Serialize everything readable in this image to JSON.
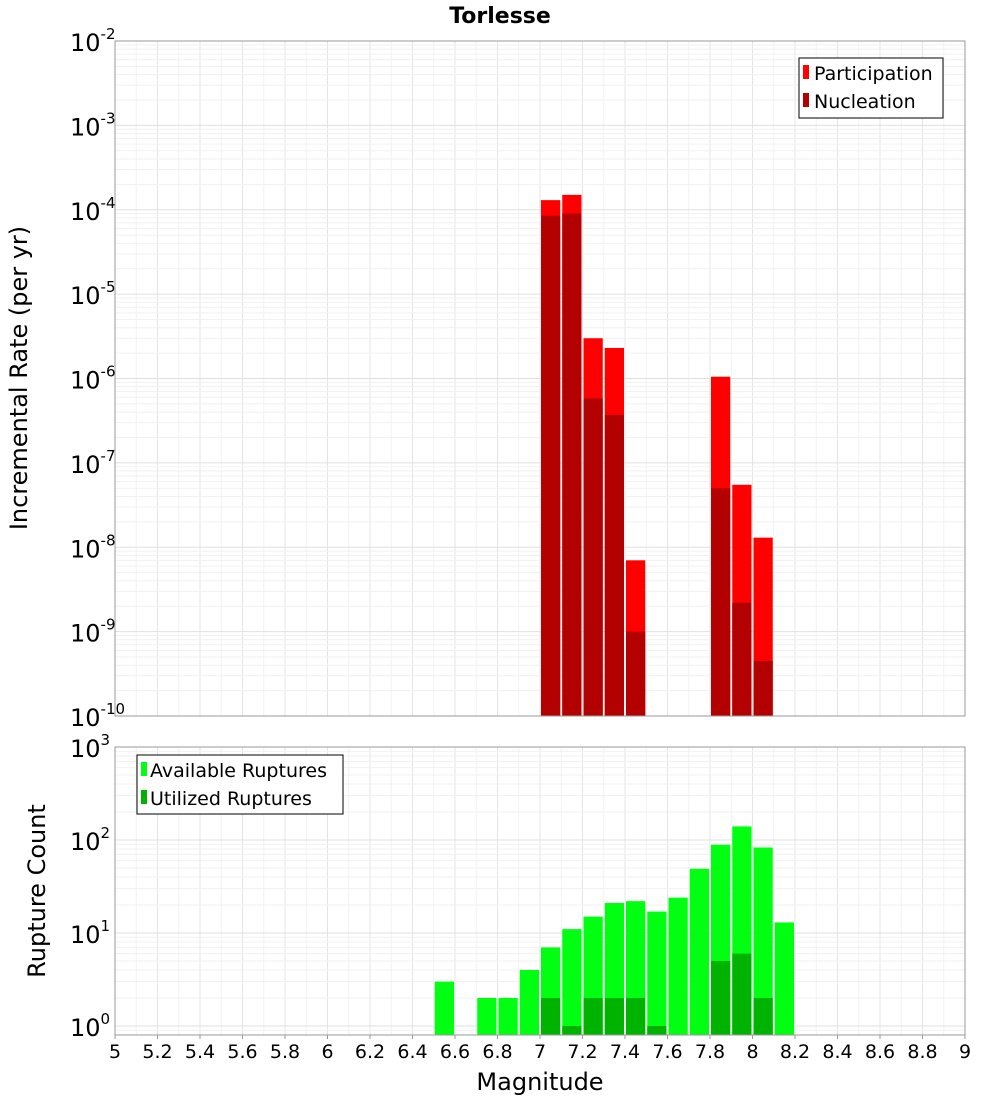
{
  "chart_data": [
    {
      "type": "bar",
      "title": "Torlesse",
      "ylabel": "Incremental Rate (per yr)",
      "xlabel": "",
      "y_scale": "log",
      "ylim": [
        1e-10,
        0.01
      ],
      "xlim": [
        5,
        9
      ],
      "y_tick_labels": [
        {
          "base": "10",
          "exp": "-10",
          "value": 1e-10
        },
        {
          "base": "10",
          "exp": "-9",
          "value": 1e-09
        },
        {
          "base": "10",
          "exp": "-8",
          "value": 1e-08
        },
        {
          "base": "10",
          "exp": "-7",
          "value": 1e-07
        },
        {
          "base": "10",
          "exp": "-6",
          "value": 1e-06
        },
        {
          "base": "10",
          "exp": "-5",
          "value": 1e-05
        },
        {
          "base": "10",
          "exp": "-4",
          "value": 0.0001
        },
        {
          "base": "10",
          "exp": "-3",
          "value": 0.001
        },
        {
          "base": "10",
          "exp": "-2",
          "value": 0.01
        }
      ],
      "legend_position": "top-right",
      "grid": true,
      "bin_width": 0.1,
      "series": [
        {
          "name": "Participation",
          "color": "#ff0000",
          "x": [
            7.05,
            7.15,
            7.25,
            7.35,
            7.45,
            7.85,
            7.95,
            8.05
          ],
          "values": [
            0.00013,
            0.00015,
            3e-06,
            2.3e-06,
            7e-09,
            1.05e-06,
            5.5e-08,
            1.3e-08
          ]
        },
        {
          "name": "Nucleation",
          "color": "#b30000",
          "x": [
            7.05,
            7.15,
            7.25,
            7.35,
            7.45,
            7.85,
            7.95,
            8.05
          ],
          "values": [
            8.5e-05,
            9e-05,
            5.8e-07,
            3.7e-07,
            1e-09,
            5e-08,
            2.2e-09,
            4.5e-10
          ]
        }
      ]
    },
    {
      "type": "bar",
      "title": "",
      "ylabel": "Rupture Count",
      "xlabel": "Magnitude",
      "y_scale": "log",
      "ylim": [
        0.8,
        1000
      ],
      "xlim": [
        5,
        9
      ],
      "x_ticks": [
        "5",
        "5.2",
        "5.4",
        "5.6",
        "5.8",
        "6",
        "6.2",
        "6.4",
        "6.6",
        "6.8",
        "7",
        "7.2",
        "7.4",
        "7.6",
        "7.8",
        "8",
        "8.2",
        "8.4",
        "8.6",
        "8.8",
        "9"
      ],
      "y_tick_labels": [
        {
          "base": "10",
          "exp": "0",
          "value": 1
        },
        {
          "base": "10",
          "exp": "1",
          "value": 10
        },
        {
          "base": "10",
          "exp": "2",
          "value": 100
        },
        {
          "base": "10",
          "exp": "3",
          "value": 1000
        }
      ],
      "legend_position": "top-left",
      "grid": true,
      "bin_width": 0.1,
      "series": [
        {
          "name": "Available Ruptures",
          "color": "#00ff11",
          "x": [
            6.55,
            6.75,
            6.85,
            6.95,
            7.05,
            7.15,
            7.25,
            7.35,
            7.45,
            7.55,
            7.65,
            7.75,
            7.85,
            7.95,
            8.05,
            8.15
          ],
          "values": [
            3,
            2,
            2,
            4,
            7,
            11,
            15,
            21,
            22,
            17,
            24,
            49,
            89,
            140,
            83,
            13
          ]
        },
        {
          "name": "Utilized Ruptures",
          "color": "#00b300",
          "x": [
            7.05,
            7.15,
            7.25,
            7.35,
            7.45,
            7.55,
            7.85,
            7.95,
            8.05
          ],
          "values": [
            2,
            1,
            2,
            2,
            2,
            1,
            5,
            6,
            2
          ]
        }
      ]
    }
  ]
}
